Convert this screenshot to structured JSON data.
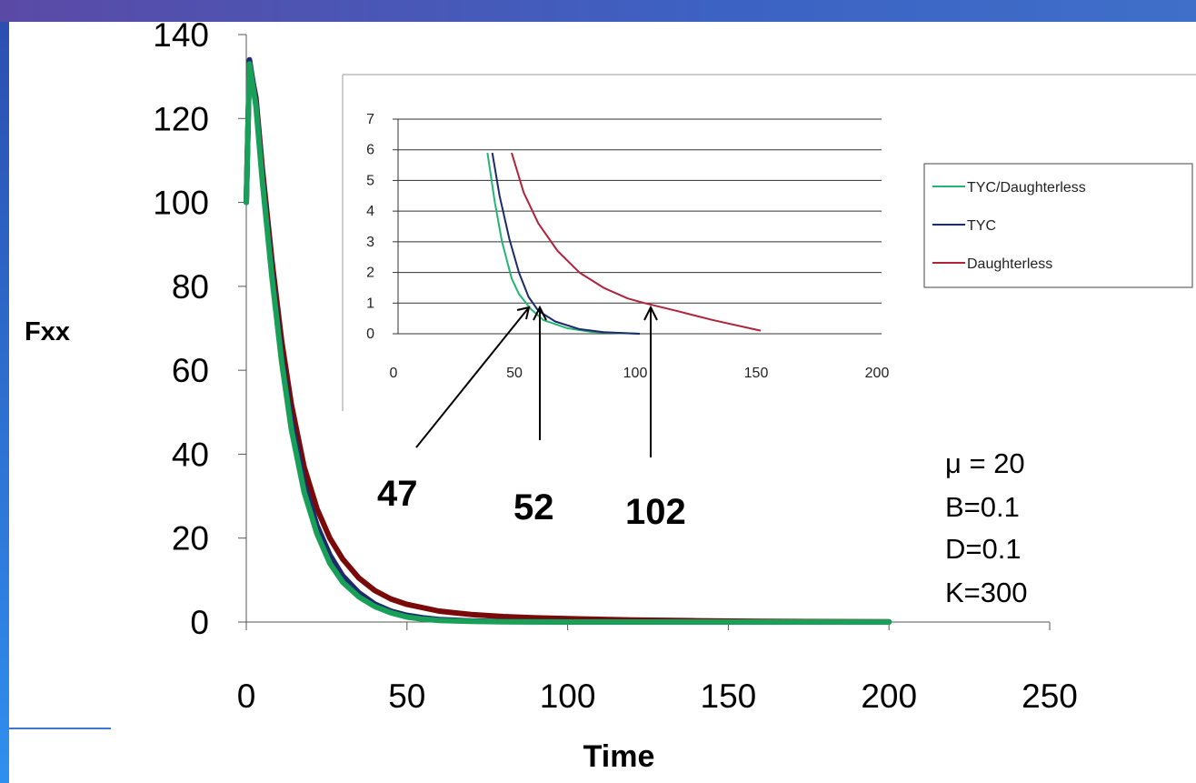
{
  "chart_data": [
    {
      "id": "main",
      "type": "line",
      "title": "",
      "xlabel": "Time",
      "ylabel": "Fxx",
      "xlim": [
        0,
        250
      ],
      "ylim": [
        0,
        140
      ],
      "x_ticks": [
        0,
        50,
        100,
        150,
        200,
        250
      ],
      "y_ticks": [
        0,
        20,
        40,
        60,
        80,
        100,
        120,
        140
      ],
      "grid": false,
      "legend": "none",
      "series": [
        {
          "color": "#7a0a0a",
          "points": [
            [
              0,
              100
            ],
            [
              1,
              133
            ],
            [
              3,
              125
            ],
            [
              5,
              108
            ],
            [
              8,
              86
            ],
            [
              11,
              67
            ],
            [
              14,
              52
            ],
            [
              18,
              37
            ],
            [
              22,
              27
            ],
            [
              26,
              20
            ],
            [
              30,
              15
            ],
            [
              35,
              10.5
            ],
            [
              40,
              7.5
            ],
            [
              45,
              5.5
            ],
            [
              50,
              4.2
            ],
            [
              60,
              2.6
            ],
            [
              70,
              1.8
            ],
            [
              80,
              1.3
            ],
            [
              90,
              1.0
            ],
            [
              100,
              0.8
            ],
            [
              120,
              0.5
            ],
            [
              140,
              0.3
            ],
            [
              160,
              0.15
            ],
            [
              200,
              0.05
            ]
          ]
        },
        {
          "color": "#1c2a6e",
          "points": [
            [
              0,
              100
            ],
            [
              1,
              134
            ],
            [
              3,
              124
            ],
            [
              5,
              106
            ],
            [
              8,
              83
            ],
            [
              11,
              63
            ],
            [
              14,
              48
            ],
            [
              18,
              33
            ],
            [
              22,
              23
            ],
            [
              26,
              16
            ],
            [
              30,
              11
            ],
            [
              35,
              7
            ],
            [
              40,
              4.3
            ],
            [
              45,
              2.6
            ],
            [
              50,
              1.6
            ],
            [
              55,
              1.0
            ],
            [
              60,
              0.6
            ],
            [
              70,
              0.25
            ],
            [
              80,
              0.1
            ],
            [
              100,
              0.02
            ],
            [
              150,
              0
            ],
            [
              200,
              0
            ]
          ]
        },
        {
          "color": "#18a058",
          "points": [
            [
              0,
              100
            ],
            [
              1,
              133
            ],
            [
              3,
              123
            ],
            [
              5,
              105
            ],
            [
              8,
              82
            ],
            [
              11,
              62
            ],
            [
              14,
              46
            ],
            [
              18,
              31
            ],
            [
              22,
              21
            ],
            [
              26,
              14
            ],
            [
              30,
              9.5
            ],
            [
              35,
              6
            ],
            [
              40,
              3.7
            ],
            [
              45,
              2.2
            ],
            [
              50,
              1.2
            ],
            [
              55,
              0.7
            ],
            [
              60,
              0.4
            ],
            [
              70,
              0.15
            ],
            [
              80,
              0.05
            ],
            [
              100,
              0
            ],
            [
              150,
              0
            ],
            [
              200,
              0
            ]
          ]
        }
      ]
    },
    {
      "id": "inset",
      "type": "line",
      "title": "",
      "xlabel": "",
      "ylabel": "",
      "xlim": [
        0,
        200
      ],
      "ylim": [
        0,
        7
      ],
      "x_ticks": [
        0,
        50,
        100,
        150,
        200
      ],
      "y_ticks": [
        0,
        1,
        2,
        3,
        4,
        5,
        6,
        7
      ],
      "grid": true,
      "legend": "right",
      "series": [
        {
          "name": "TYC/Daughterless",
          "color": "#22b573",
          "points": [
            [
              37,
              5.9
            ],
            [
              40,
              4.3
            ],
            [
              43,
              3.0
            ],
            [
              47,
              1.8
            ],
            [
              50,
              1.3
            ],
            [
              55,
              0.8
            ],
            [
              60,
              0.45
            ],
            [
              70,
              0.18
            ],
            [
              80,
              0.06
            ],
            [
              90,
              0.02
            ],
            [
              100,
              0
            ]
          ]
        },
        {
          "name": "TYC",
          "color": "#1c2a6e",
          "points": [
            [
              39,
              5.9
            ],
            [
              42,
              4.5
            ],
            [
              46,
              3.1
            ],
            [
              50,
              2.0
            ],
            [
              54,
              1.2
            ],
            [
              58,
              0.75
            ],
            [
              65,
              0.4
            ],
            [
              75,
              0.15
            ],
            [
              85,
              0.05
            ],
            [
              100,
              0
            ]
          ]
        },
        {
          "name": "Daughterless",
          "color": "#b0233a",
          "points": [
            [
              47,
              5.9
            ],
            [
              52,
              4.6
            ],
            [
              58,
              3.6
            ],
            [
              66,
              2.7
            ],
            [
              75,
              2.0
            ],
            [
              85,
              1.5
            ],
            [
              95,
              1.15
            ],
            [
              102,
              1.0
            ],
            [
              115,
              0.75
            ],
            [
              130,
              0.45
            ],
            [
              150,
              0.1
            ]
          ]
        }
      ]
    }
  ],
  "annotations": {
    "arrow_labels": [
      "47",
      "52",
      "102"
    ],
    "arrow_targets": [
      47,
      52,
      102
    ],
    "params": [
      "μ = 20",
      "B=0.1",
      "D=0.1",
      "K=300"
    ]
  }
}
